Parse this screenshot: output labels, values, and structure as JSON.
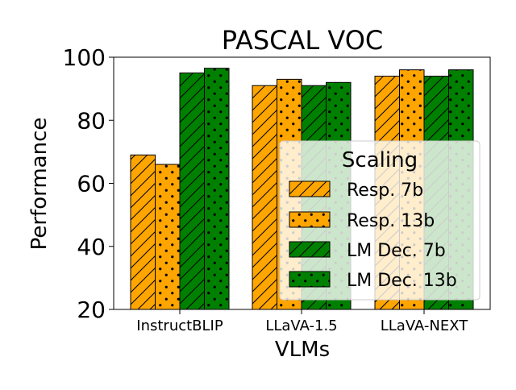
{
  "chart_data": {
    "type": "bar",
    "title": "PASCAL VOC",
    "xlabel": "VLMs",
    "ylabel": "Performance",
    "ylim": [
      20,
      100
    ],
    "yticks": [
      20,
      40,
      60,
      80,
      100
    ],
    "categories": [
      "InstructBLIP",
      "LLaVA-1.5",
      "LLaVA-NEXT"
    ],
    "series": [
      {
        "name": "Resp. 7b",
        "values": [
          69,
          91,
          94
        ],
        "color": "#FFA500",
        "hatch": "diagonal"
      },
      {
        "name": "Resp. 13b",
        "values": [
          66,
          93,
          96
        ],
        "color": "#FFA500",
        "hatch": "dots"
      },
      {
        "name": "LM Dec. 7b",
        "values": [
          95,
          91,
          94
        ],
        "color": "#008000",
        "hatch": "diagonal"
      },
      {
        "name": "LM Dec. 13b",
        "values": [
          96.5,
          92,
          96
        ],
        "color": "#008000",
        "hatch": "dots"
      }
    ],
    "legend": {
      "title": "Scaling",
      "position": "center-right"
    }
  }
}
